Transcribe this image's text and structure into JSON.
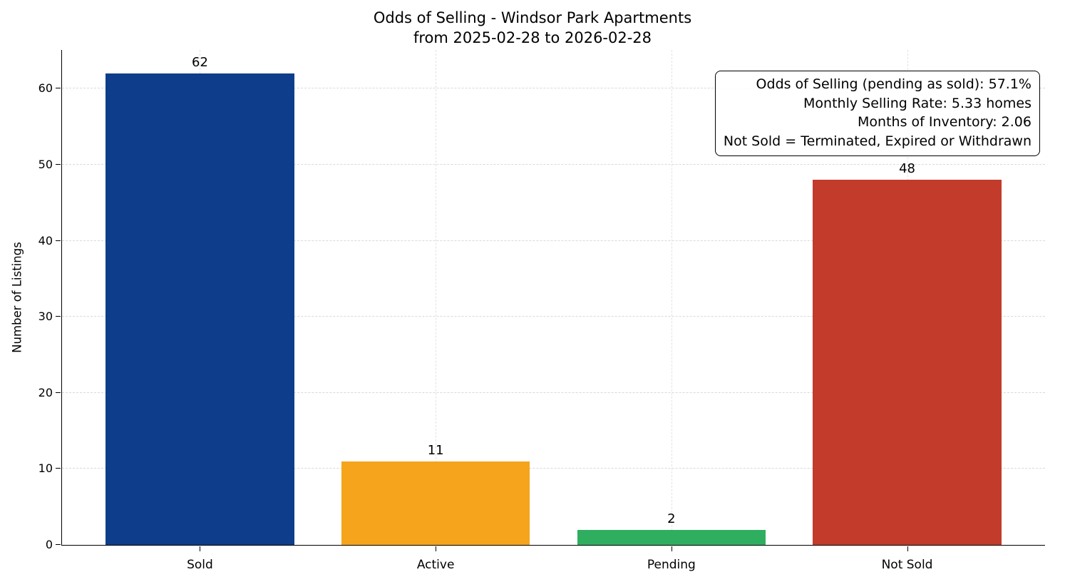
{
  "figure": {
    "background": "#ffffff"
  },
  "chart_data": {
    "type": "bar",
    "title": "Odds of Selling - Windsor Park Apartments",
    "subtitle": "from 2025-02-28 to 2026-02-28",
    "categories": [
      "Sold",
      "Active",
      "Pending",
      "Not Sold"
    ],
    "values": [
      62,
      11,
      2,
      48
    ],
    "bar_colors": [
      "#0e3d8c",
      "#f5a41c",
      "#2fae60",
      "#c23b2b"
    ],
    "xlabel": "",
    "ylabel": "Number of Listings",
    "ylim": [
      0,
      65.1
    ],
    "yticks": [
      0,
      10,
      20,
      30,
      40,
      50,
      60
    ],
    "grid": "dashed-both-axes",
    "legend": "none",
    "annotation_box": {
      "position": "top-right",
      "lines": [
        "Odds of Selling (pending as sold): 57.1%",
        "Monthly Selling Rate: 5.33 homes",
        "Months of Inventory: 2.06",
        "Not Sold = Terminated, Expired or Withdrawn"
      ]
    }
  }
}
